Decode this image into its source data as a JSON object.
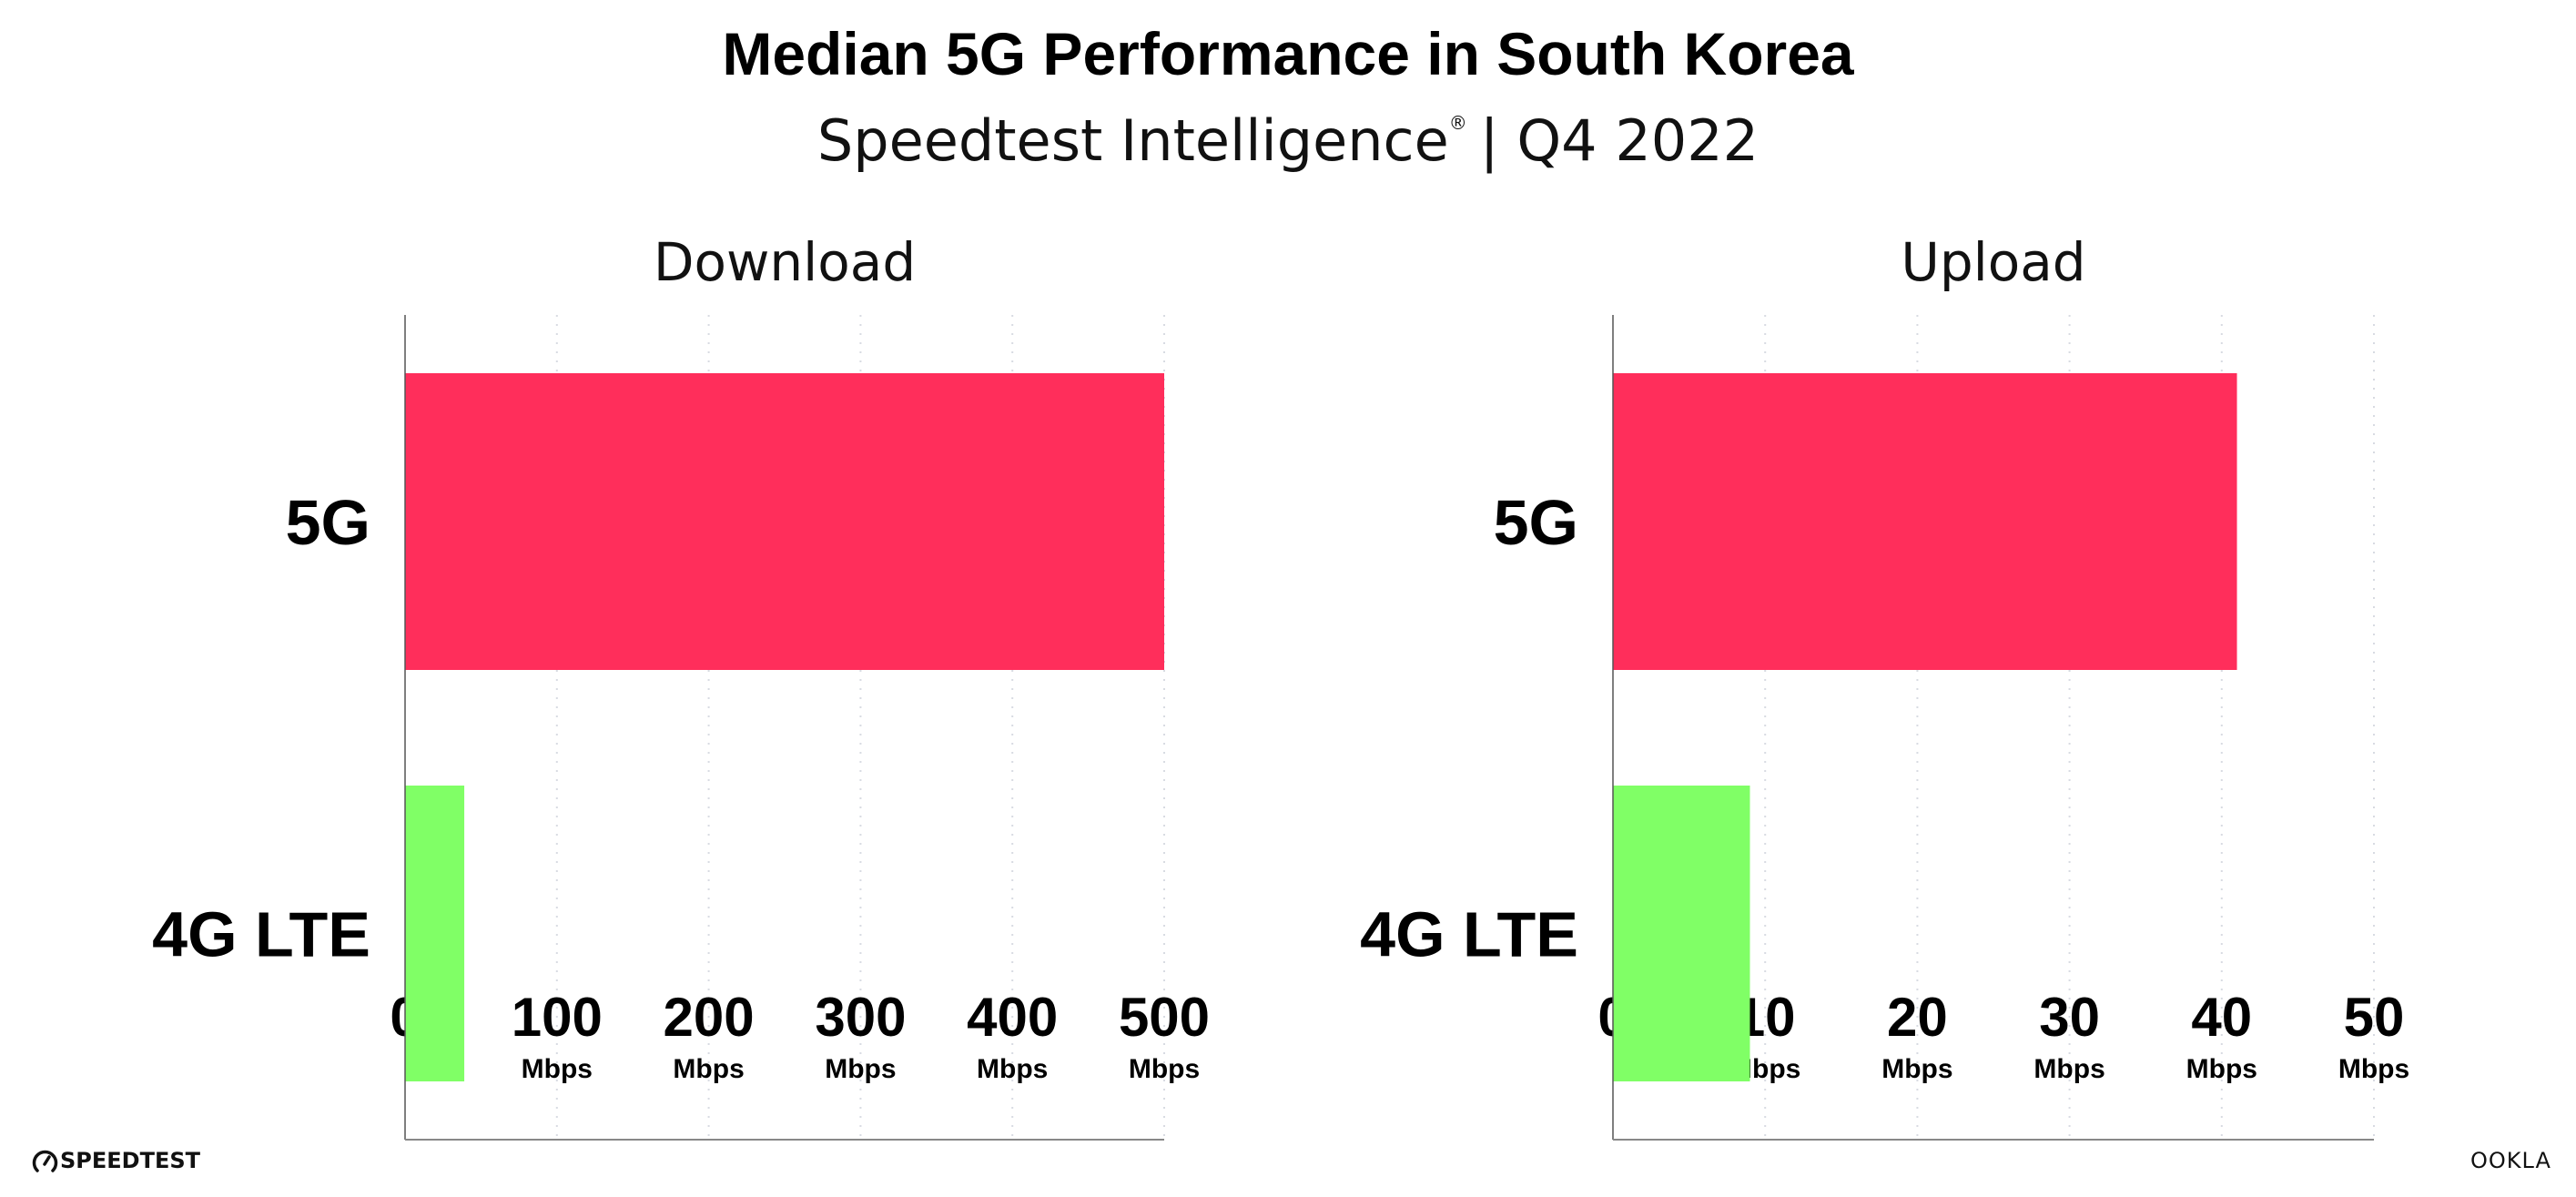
{
  "header": {
    "title": "Median 5G Performance in South Korea",
    "subtitle": "Speedtest Intelligence",
    "subtitle_mark": "®",
    "subtitle_period": "| Q4 2022"
  },
  "colors": {
    "5G": "#ff2e5b",
    "4G LTE": "#80ff66",
    "grid": "#d8dbe2",
    "axis": "#888888"
  },
  "chart_data": [
    {
      "type": "bar",
      "orientation": "horizontal",
      "title": "Download",
      "categories": [
        "5G",
        "4G LTE"
      ],
      "values": [
        500,
        39
      ],
      "xlim": [
        0,
        500
      ],
      "ticks": [
        0,
        100,
        200,
        300,
        400,
        500
      ],
      "tick_labels": [
        "0",
        "100",
        "200",
        "300",
        "400",
        "500"
      ],
      "tick_unit": "Mbps",
      "grid": "vertical-dotted"
    },
    {
      "type": "bar",
      "orientation": "horizontal",
      "title": "Upload",
      "categories": [
        "5G",
        "4G LTE"
      ],
      "values": [
        41,
        9
      ],
      "xlim": [
        0,
        50
      ],
      "ticks": [
        0,
        10,
        20,
        30,
        40,
        50
      ],
      "tick_labels": [
        "0",
        "10",
        "20",
        "30",
        "40",
        "50"
      ],
      "tick_unit": "Mbps",
      "grid": "vertical-dotted"
    }
  ],
  "footer": {
    "left_logo": "SPEEDTEST",
    "right_logo": "OOKLA"
  }
}
